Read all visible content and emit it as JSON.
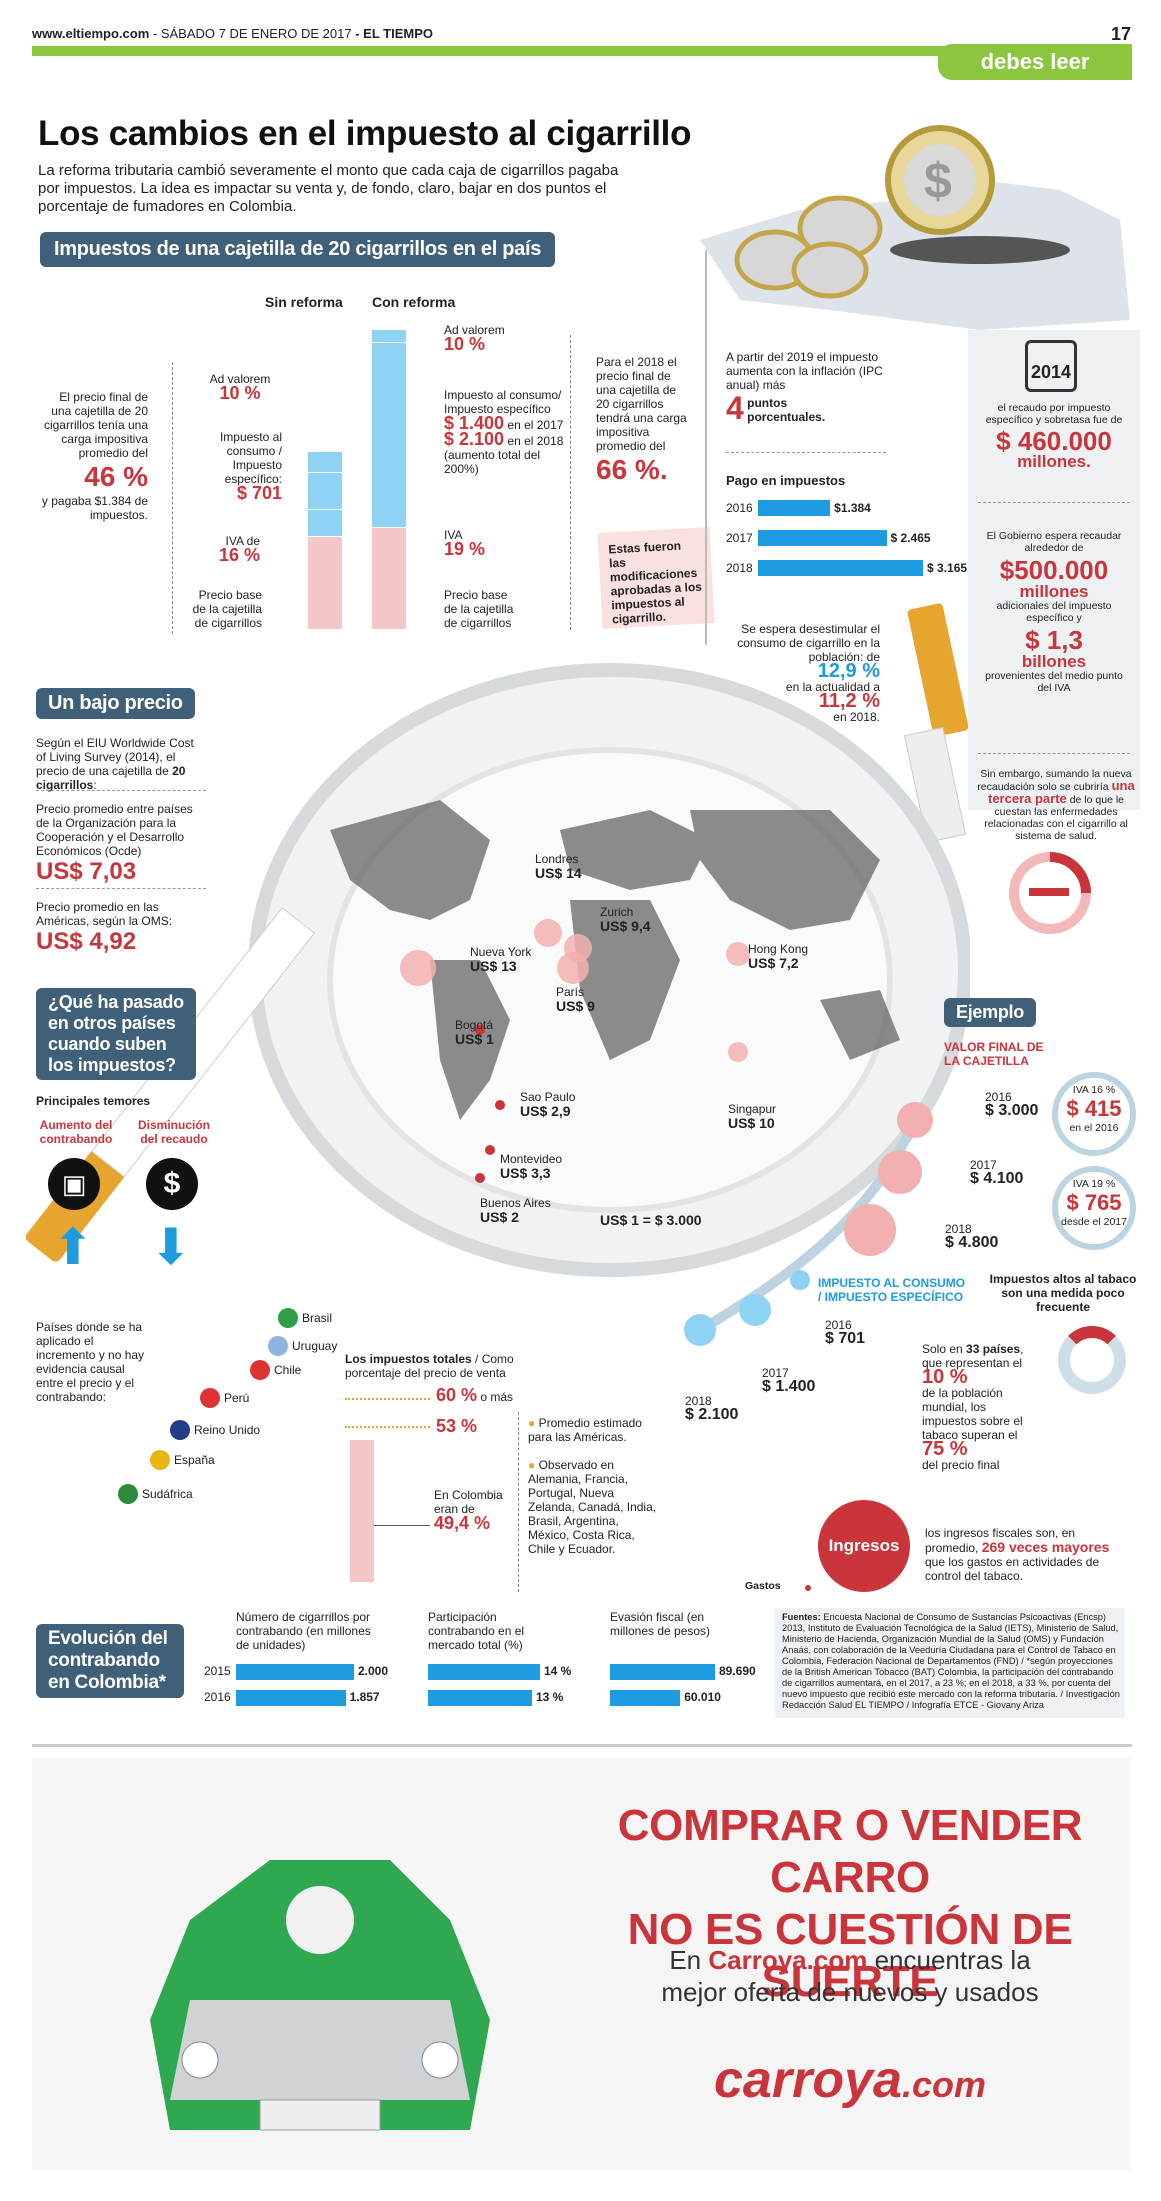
{
  "header": {
    "site": "www.eltiempo.com",
    "date": "SÁBADO 7 DE ENERO DE 2017",
    "paper": "EL TIEMPO",
    "page": "17",
    "section": "debes leer"
  },
  "title": "Los cambios en el impuesto al cigarrillo",
  "intro": "La reforma tributaria cambió severamente el monto que cada caja de cigarrillos pagaba por impuestos. La idea es impactar su venta y, de fondo, claro, bajar en dos puntos el porcentaje de fumadores en Colombia.",
  "tax": {
    "banner": "Impuestos de una cajetilla de 20 cigarrillos en el país",
    "sin_reforma": "Sin reforma",
    "con_reforma": "Con reforma",
    "left_text": "El precio final de una cajetilla de 20 cigarrillos tenía una carga impositiva promedio del",
    "left_pct": "46 %",
    "left_text2": "y pagaba $1.384 de impuestos.",
    "sin_advalorem": "Ad valorem",
    "sin_advalorem_pct": "10 %",
    "sin_consumo": "Impuesto al consumo / Impuesto específico:",
    "sin_consumo_val": "$ 701",
    "sin_iva": "IVA de",
    "sin_iva_pct": "16 %",
    "sin_base": "Precio base de la cajetilla de cigarrillos",
    "con_advalorem": "Ad valorem",
    "con_advalorem_pct": "10 %",
    "con_consumo": "Impuesto al consumo/ Impuesto específico",
    "con_consumo_v1": "$ 1.400",
    "con_consumo_y1": "en el 2017",
    "con_consumo_v2": "$ 2.100",
    "con_consumo_y2": "en el 2018",
    "con_consumo_note": "(aumento total del 200%)",
    "con_iva": "IVA",
    "con_iva_pct": "19 %",
    "con_base": "Precio base de la cajetilla de cigarrillos",
    "right_text": "Para el 2018 el precio final de una cajetilla de 20 cigarrillos tendrá una carga impositiva promedio del",
    "right_pct": "66 %.",
    "note": "Estas fueron las modificaciones aprobadas a los impuestos al cigarrillo."
  },
  "inflation": {
    "text": "A partir del 2019 el impuesto aumenta con la inflación (IPC anual) más",
    "num": "4",
    "unit": "puntos porcentuales."
  },
  "pago": {
    "title": "Pago en impuestos",
    "rows": [
      {
        "year": "2016",
        "value": 1384,
        "label": "$1.384"
      },
      {
        "year": "2017",
        "value": 2465,
        "label": "$ 2.465"
      },
      {
        "year": "2018",
        "value": 3165,
        "label": "$ 3.165"
      }
    ]
  },
  "consumo": {
    "t1": "Se espera desestimular el consumo de cigarrillo en la población: de",
    "v1": "12,9 %",
    "t2": "en la actualidad a",
    "v2": "11,2 %",
    "t3": "en 2018."
  },
  "side": {
    "year": "2014",
    "t1": "el recaudo por impuesto específico y sobretasa fue de",
    "v1": "$ 460.000",
    "v1b": "millones.",
    "t2": "El Gobierno espera recaudar alrededor de",
    "v2": "$500.000",
    "v2b": "millones",
    "t3": "adicionales del impuesto específico y",
    "v3": "$ 1,3",
    "v3b": "billones",
    "t4": "provenientes del medio punto del IVA",
    "t5a": "Sin embargo, sumando la nueva recaudación solo se cubriría",
    "t5b": "una tercera parte",
    "t5c": "de lo que le cuestan las enfermedades relacionadas con el cigarrillo al sistema de salud."
  },
  "bajo": {
    "title": "Un bajo precio",
    "t1": "Según el EIU Worldwide Cost of Living Survey (2014), el precio de una cajetilla de",
    "t1b": "20 cigarrillos",
    "t2": "Precio promedio entre países de la Organización para la Cooperación y el Desarrollo Económicos (Ocde)",
    "v2": "US$ 7,03",
    "t3": "Precio promedio en las Américas, según la OMS:",
    "v3": "US$ 4,92"
  },
  "qhp": {
    "title": "¿Qué ha pasado en otros países cuando suben los impuestos?",
    "temores": "Principales temores",
    "a": "Aumento del contrabando",
    "b": "Disminución del recaudo"
  },
  "cities": [
    {
      "name": "Londres",
      "price": "US$ 14"
    },
    {
      "name": "Zurich",
      "price": "US$ 9,4"
    },
    {
      "name": "Nueva York",
      "price": "US$ 13"
    },
    {
      "name": "París",
      "price": "US$ 9"
    },
    {
      "name": "Hong Kong",
      "price": "US$ 7,2"
    },
    {
      "name": "Bogotá",
      "price": "US$ 1"
    },
    {
      "name": "Singapur",
      "price": "US$ 10"
    },
    {
      "name": "Sao Paulo",
      "price": "US$ 2,9"
    },
    {
      "name": "Montevideo",
      "price": "US$ 3,3"
    },
    {
      "name": "Buenos Aires",
      "price": "US$ 2"
    }
  ],
  "exchange": "US$ 1 = $ 3.000",
  "paises": {
    "text": "Países donde se ha aplicado el incremento y no hay evidencia causal entre el precio y el contrabando:",
    "list": [
      "Brasil",
      "Uruguay",
      "Chile",
      "Perú",
      "Reino Unido",
      "España",
      "Sudáfrica"
    ]
  },
  "totales": {
    "title": "Los impuestos totales",
    "subtitle": "/ Como porcentaje del precio de venta",
    "v1": "60 %",
    "v1b": "o más",
    "v2": "53 %",
    "col": "En Colombia eran de",
    "colv": "49,4 %",
    "leg1": "Promedio estimado para las Américas.",
    "leg2": "Observado en Alemania, Francia, Portugal, Nueva Zelanda, Canadá, India, Brasil, Argentina, México, Costa Rica, Chile y Ecuador."
  },
  "ejemplo": {
    "title": "Ejemplo",
    "valor": "VALOR FINAL DE LA CAJETILLA",
    "rows": [
      {
        "year": "2016",
        "v": "$ 3.000"
      },
      {
        "year": "2017",
        "v": "$ 4.100"
      },
      {
        "year": "2018",
        "v": "$ 4.800"
      }
    ],
    "iva1": "IVA 16 %",
    "iva1v": "$ 415",
    "iva1y": "en el 2016",
    "iva2": "IVA 19 %",
    "iva2v": "$ 765",
    "iva2y": "desde el 2017",
    "consumo_title": "IMPUESTO AL CONSUMO / IMPUESTO ESPECÍFICO",
    "c": [
      {
        "year": "2016",
        "v": "$ 701"
      },
      {
        "year": "2017",
        "v": "$ 1.400"
      },
      {
        "year": "2018",
        "v": "$ 2.100"
      }
    ]
  },
  "altos": {
    "title": "Impuestos altos al tabaco son una medida poco frecuente",
    "t1": "Solo en",
    "t1b": "33 países",
    "t2": "que representan el",
    "v": "10 %",
    "t3": "de la población mundial, los impuestos sobre el tabaco superan el",
    "v2": "75 %",
    "t4": "del precio final"
  },
  "ingresos": {
    "label": "Ingresos",
    "gastos": "Gastos",
    "t1": "los ingresos fiscales son, en promedio,",
    "t1b": "269 veces mayores",
    "t2": "que los gastos en actividades de control del tabaco."
  },
  "evol": {
    "title": "Evolución del contrabando en Colombia*",
    "h1": "Número de cigarrillos por contrabando (en millones de unidades)",
    "h2": "Participación contrabando en el mercado total (%)",
    "h3": "Evasión fiscal (en millones de pesos)",
    "rows": [
      {
        "year": "2015",
        "a": 2000,
        "al": "2.000",
        "b": 14,
        "bl": "14 %",
        "c": 89690,
        "cl": "89.690"
      },
      {
        "year": "2016",
        "a": 1857,
        "al": "1.857",
        "b": 13,
        "bl": "13 %",
        "c": 60010,
        "cl": "60.010"
      }
    ]
  },
  "fuentes": {
    "label": "Fuentes:",
    "text": "Encuesta Nacional de Consumo de Sustancias Psicoactivas (Encsp) 2013, Instituto de Evaluación Tecnológica de la Salud (IETS), Ministerio de Salud, Ministerio de Hacienda, Organización Mundial de la Salud (OMS) y Fundación Anaás, con colaboración de la Veeduría Ciudadana para el Control de Tabaco en Colombia, Federación Nacional de Departamentos (FND) / *según proyecciones de la British American Tobacco (BAT) Colombia, la participación del contrabando de cigarrillos aumentará, en el 2017, a 23 %; en el 2018, a 33 %, por cuenta del nuevo impuesto que recibió este mercado con la reforma tributaria. / Investigación Redacción Salud EL TIEMPO / Infografía ETCE - Giovany Ariza"
  },
  "ad": {
    "h1": "COMPRAR O VENDER CARRO",
    "h2": "NO ES CUESTIÓN DE SUERTE",
    "p1": "En",
    "brand_inline": "Carroya.com",
    "p2": "encuentras la",
    "p3": "mejor oferta de nuevos y usados",
    "logo1": "carroya",
    "logo2": ".com"
  },
  "colors": {
    "red": "#c9353a",
    "blue": "#1e9be0",
    "navy": "#3f6078",
    "green": "#8cc63f",
    "pink": "#f5c6c6",
    "lightblue": "#8fd3f4"
  }
}
